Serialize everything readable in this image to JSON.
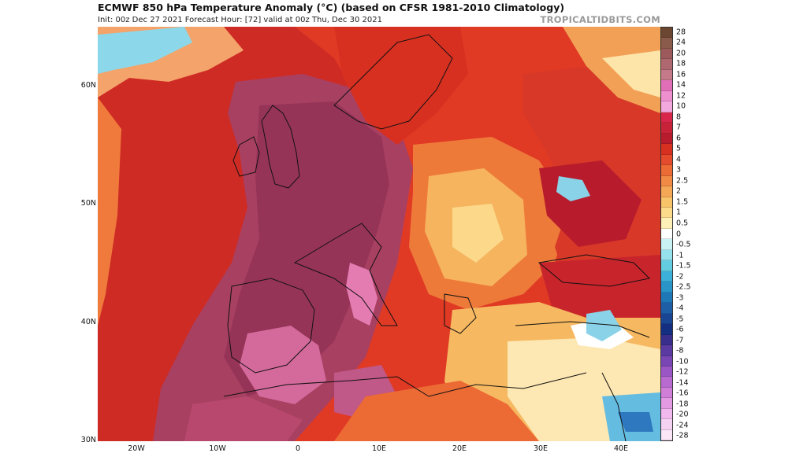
{
  "header": {
    "title": "ECMWF 850 hPa Temperature Anomaly (°C) (based on CFSR 1981-2010 Climatology)",
    "subtitle": "Init: 00z Dec 27 2021   Forecast Hour: [72]   valid at 00z Thu, Dec 30 2021",
    "brand": "TROPICALTIDBITS.COM"
  },
  "map": {
    "lat_labels": [
      "60N",
      "50N",
      "40N",
      "30N"
    ],
    "lon_labels": [
      "20W",
      "10W",
      "0",
      "10E",
      "20E",
      "30E",
      "40E"
    ]
  },
  "colorbar": {
    "labels": [
      "28",
      "24",
      "20",
      "18",
      "16",
      "14",
      "12",
      "10",
      "8",
      "7",
      "6",
      "5",
      "4",
      "3",
      "2.5",
      "2",
      "1.5",
      "1",
      "0.5",
      "0",
      "-0.5",
      "-1",
      "-1.5",
      "-2",
      "-2.5",
      "-3",
      "-4",
      "-5",
      "-6",
      "-7",
      "-8",
      "-10",
      "-12",
      "-14",
      "-16",
      "-18",
      "-20",
      "-24",
      "-28"
    ],
    "colors": [
      "#6b4630",
      "#8a5a4a",
      "#9c5a5c",
      "#b06870",
      "#c47a88",
      "#e06fb8",
      "#ee8fd0",
      "#f2a8dc",
      "#d8264a",
      "#c82238",
      "#b81c2c",
      "#d83020",
      "#e44a2c",
      "#ec6a34",
      "#f08a44",
      "#f4a856",
      "#f8c46a",
      "#fcdc8a",
      "#fff0b8",
      "#ffffff",
      "#c8f2f4",
      "#96e2ec",
      "#64cce0",
      "#3cb0d8",
      "#2894c8",
      "#1e78b8",
      "#1e5ea6",
      "#1a4494",
      "#142e82",
      "#3a2e8c",
      "#5a3aa0",
      "#7a46b4",
      "#9a56c4",
      "#b86ad0",
      "#d07ed8",
      "#e49ae2",
      "#f0b8ec",
      "#f6d2f2",
      "#fbe6f8"
    ]
  }
}
